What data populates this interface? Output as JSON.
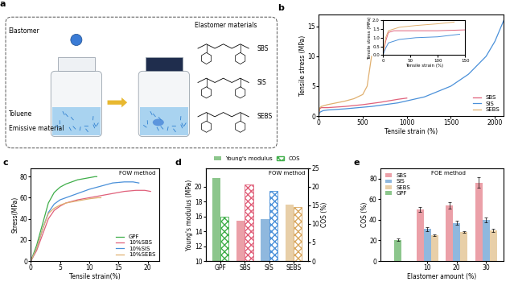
{
  "diagram": {
    "title": "a",
    "labels": {
      "elastomer": "Elastomer",
      "solvent": "Toluene",
      "emissive": "Emissive material"
    },
    "structures": {
      "title": "Elastomer materials",
      "items": [
        "SBS",
        "SIS",
        "SEBS"
      ]
    }
  },
  "chart_data": [
    {
      "type": "line",
      "title": "b",
      "x_label": "Tensile strain (%)",
      "y_label": "Tensile stress (MPa)",
      "xlim": [
        0,
        2100
      ],
      "xticks": [
        0,
        500,
        1000,
        1500,
        2000
      ],
      "ylim": [
        0,
        17
      ],
      "yticks": [
        0,
        5,
        10,
        15
      ],
      "legend": "lower right",
      "series": [
        {
          "name": "SBS",
          "color": "#e0607a",
          "x": [
            0,
            10,
            30,
            100,
            300,
            500,
            700,
            900,
            1000
          ],
          "values": [
            0,
            1.2,
            1.4,
            1.4,
            1.6,
            1.9,
            2.3,
            2.8,
            3.0
          ]
        },
        {
          "name": "SIS",
          "color": "#4a90d9",
          "x": [
            0,
            10,
            50,
            100,
            300,
            600,
            900,
            1200,
            1500,
            1700,
            1900,
            2000,
            2100
          ],
          "values": [
            0,
            0.6,
            0.9,
            1.0,
            1.2,
            1.6,
            2.2,
            3.2,
            5,
            7,
            10,
            12.5,
            16
          ]
        },
        {
          "name": "SEBS",
          "color": "#e0b070",
          "x": [
            0,
            10,
            30,
            100,
            200,
            300,
            400,
            500,
            550,
            580,
            600
          ],
          "values": [
            0,
            1.3,
            1.6,
            1.9,
            2.2,
            2.5,
            2.9,
            3.6,
            5,
            8,
            10
          ]
        }
      ]
    },
    {
      "type": "line",
      "x_label": "Tensile strain (%)",
      "y_label": "Tensile stress (MPa)",
      "xlim": [
        0,
        150
      ],
      "xticks": [
        0,
        50,
        100,
        150
      ],
      "ylim": [
        0,
        2.0
      ],
      "yticks": [
        {
          "value": 0,
          "label": "0.0"
        },
        {
          "value": 0.5,
          "label": "0.5"
        },
        {
          "value": 1.0,
          "label": "1.0"
        },
        {
          "value": 1.5,
          "label": "1.5"
        },
        {
          "value": 2.0,
          "label": "2.0"
        }
      ],
      "series": [
        {
          "color": "#e0607a",
          "x": [
            0,
            5,
            10,
            20,
            50,
            100,
            150
          ],
          "values": [
            0,
            0.8,
            1.3,
            1.4,
            1.4,
            1.4,
            1.45
          ]
        },
        {
          "color": "#4a90d9",
          "x": [
            0,
            5,
            10,
            30,
            60,
            100,
            140
          ],
          "values": [
            0,
            0.4,
            0.7,
            0.9,
            1.0,
            1.05,
            1.2
          ]
        },
        {
          "color": "#e0b070",
          "x": [
            0,
            5,
            10,
            30,
            60,
            100,
            130
          ],
          "values": [
            0,
            1.0,
            1.4,
            1.6,
            1.7,
            1.8,
            1.9
          ]
        }
      ]
    },
    {
      "type": "line",
      "title": "c",
      "annotation": "FOW method",
      "x_label": "Tensile strain(%)",
      "y_label": "Stress(MPa)",
      "xlim": [
        0,
        22
      ],
      "xticks": [
        0,
        5,
        10,
        15,
        20
      ],
      "ylim": [
        0,
        88
      ],
      "yticks": [
        0,
        20,
        40,
        60,
        80
      ],
      "legend": "lower right",
      "series": [
        {
          "name": "GPF",
          "color": "#3fae49",
          "x": [
            0,
            1,
            2,
            3,
            4,
            5,
            6,
            7,
            8,
            9,
            10,
            11,
            11.3
          ],
          "values": [
            0,
            15,
            35,
            55,
            65,
            70,
            73,
            75,
            77,
            78,
            79,
            80,
            80
          ]
        },
        {
          "name": "10%SBS",
          "color": "#e0607a",
          "x": [
            0,
            1,
            2,
            3,
            4,
            5,
            6,
            8,
            10,
            12,
            14,
            16,
            18,
            19.5,
            20.5
          ],
          "values": [
            0,
            10,
            25,
            40,
            48,
            52,
            55,
            58,
            60,
            62,
            64,
            66,
            67,
            67,
            66
          ]
        },
        {
          "name": "10%SIS",
          "color": "#4a90d9",
          "x": [
            0,
            1,
            2,
            3,
            4,
            5,
            6,
            8,
            10,
            12,
            14,
            16,
            17.5,
            18.5
          ],
          "values": [
            0,
            12,
            30,
            46,
            54,
            58,
            60,
            64,
            68,
            71,
            74,
            75,
            75,
            74
          ]
        },
        {
          "name": "10%SEBS",
          "color": "#e0b070",
          "x": [
            0,
            1,
            2,
            3,
            4,
            5,
            6,
            8,
            10,
            11.5,
            12
          ],
          "values": [
            0,
            12,
            30,
            45,
            50,
            53,
            55,
            57,
            59,
            60,
            60
          ]
        }
      ]
    },
    {
      "type": "bar",
      "title": "d",
      "annotation": "FOW method",
      "y_label": "Young's modulus (MPa)",
      "y2_label": "COS (%)",
      "categories": [
        "GPF",
        "SBS",
        "SIS",
        "SEBS"
      ],
      "ylim": [
        10,
        22.5
      ],
      "yticks": [
        10,
        12,
        14,
        16,
        18,
        20
      ],
      "y2lim": [
        0,
        25
      ],
      "y2ticks": [
        0,
        5,
        10,
        15,
        20,
        25
      ],
      "legend": "upper center",
      "series": [
        {
          "name": "Young's modulus",
          "values": [
            21.2,
            15.4,
            15.6,
            17.6
          ],
          "colors": [
            "#8cc68c",
            "#eba0a8",
            "#8fb8de",
            "#e8cfa8"
          ]
        },
        {
          "name": "COS",
          "axis": "y2",
          "values": [
            12,
            20.6,
            18.8,
            14.6
          ],
          "colors": [
            "#3fae49",
            "#e0607a",
            "#4a90d9",
            "#d9a860"
          ]
        }
      ]
    },
    {
      "type": "bar",
      "title": "e",
      "annotation": "FOE method",
      "x_label": "Elastomer amount (%)",
      "y_label": "COS (%)",
      "categories": [
        null,
        "10",
        "20",
        "30"
      ],
      "ylim": [
        0,
        90
      ],
      "yticks": [
        0,
        20,
        40,
        60,
        80
      ],
      "legend": "upper left",
      "series": [
        {
          "name": "SBS",
          "color": "#eba0a8",
          "values": [
            null,
            50,
            54,
            76
          ],
          "errors": [
            null,
            2,
            3,
            5
          ]
        },
        {
          "name": "SIS",
          "color": "#8fb8de",
          "values": [
            null,
            31,
            37,
            40
          ],
          "errors": [
            null,
            2,
            2,
            2.5
          ]
        },
        {
          "name": "SEBS",
          "color": "#e8cfa8",
          "values": [
            null,
            25,
            28,
            30
          ],
          "errors": [
            null,
            1,
            1,
            1.5
          ]
        },
        {
          "name": "GPF",
          "color": "#8cc68c",
          "values": [
            20.5,
            null,
            null,
            null
          ],
          "errors": [
            1,
            null,
            null,
            null
          ]
        }
      ]
    }
  ]
}
